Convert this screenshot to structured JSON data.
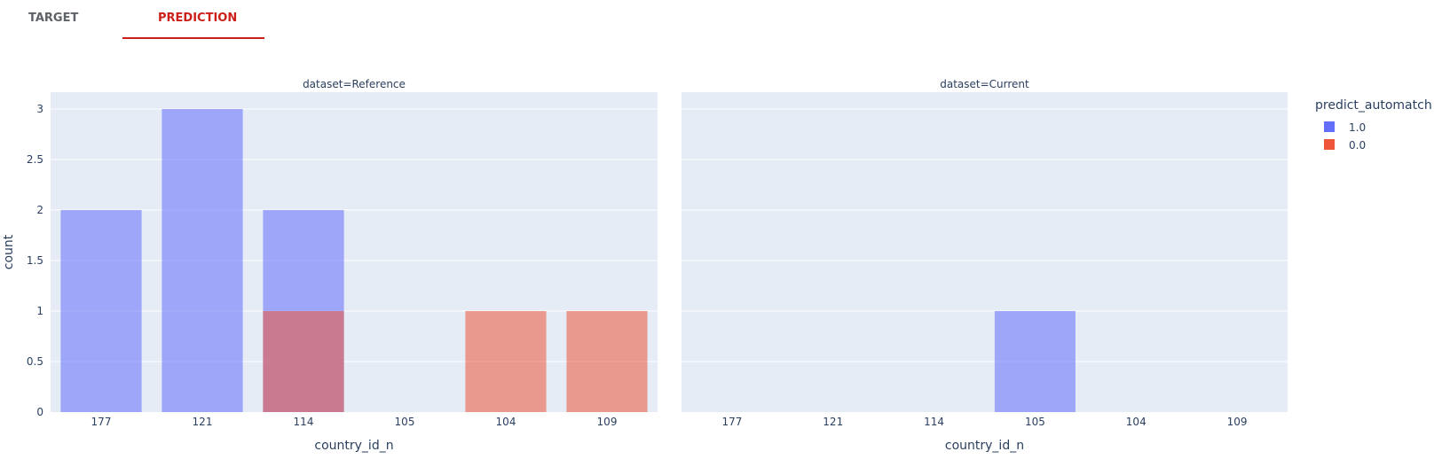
{
  "tabs": [
    {
      "label": "TARGET",
      "active": false
    },
    {
      "label": "PREDICTION",
      "active": true
    }
  ],
  "colors": {
    "active_tab": "#cc1f1a",
    "inactive_tab": "#5f6368",
    "plot_bg": "#e5ecf6",
    "series_1": "#636efa",
    "series_0": "#ef553b",
    "axis_text": "#2a3f5f"
  },
  "chart_data": {
    "type": "bar",
    "barmode": "overlay",
    "ylabel": "count",
    "xlabel": "country_id_n",
    "ylim": [
      0,
      3
    ],
    "yticks": [
      0,
      0.5,
      1,
      1.5,
      2,
      2.5,
      3
    ],
    "grid": true,
    "categories": [
      "177",
      "121",
      "114",
      "105",
      "104",
      "109"
    ],
    "legend": {
      "title": "predict_automatch",
      "placement": "top-right",
      "entries": [
        "1.0",
        "0.0"
      ]
    },
    "panels": [
      {
        "title": "dataset=Reference",
        "series": [
          {
            "name": "1.0",
            "values": [
              2,
              3,
              2,
              0,
              0,
              0
            ]
          },
          {
            "name": "0.0",
            "values": [
              0,
              0,
              1,
              0,
              1,
              1
            ]
          }
        ]
      },
      {
        "title": "dataset=Current",
        "series": [
          {
            "name": "1.0",
            "values": [
              0,
              0,
              0,
              1,
              0,
              0
            ]
          },
          {
            "name": "0.0",
            "values": [
              0,
              0,
              0,
              0,
              0,
              0
            ]
          }
        ]
      }
    ]
  }
}
